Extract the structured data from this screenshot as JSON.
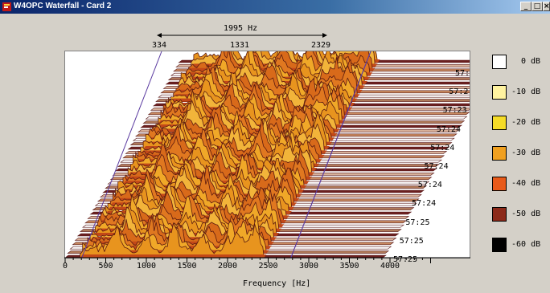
{
  "window": {
    "title": "W4OPC Waterfall  - Card 2",
    "buttons": {
      "minimize": "_",
      "maximize": "□",
      "close": "×"
    }
  },
  "bandwidth": {
    "label": "1995 Hz",
    "low": "334",
    "center": "1331",
    "high": "2329"
  },
  "timestamps": [
    "57:",
    "57:2",
    "57:23",
    "57:24",
    "57:24",
    "57:24",
    "57:24",
    "57:24",
    "57:25",
    "57:25",
    "57:25"
  ],
  "legend": [
    {
      "label": "0 dB",
      "color": "#ffffff"
    },
    {
      "label": "-10 dB",
      "color": "#fff3a0"
    },
    {
      "label": "-20 dB",
      "color": "#f5dc28"
    },
    {
      "label": "-30 dB",
      "color": "#f0a020"
    },
    {
      "label": "-40 dB",
      "color": "#e85a1a"
    },
    {
      "label": "-50 dB",
      "color": "#8c2a1a"
    },
    {
      "label": "-60 dB",
      "color": "#000000"
    }
  ],
  "chart_data": {
    "type": "area",
    "xlabel": "Frequency [Hz]",
    "xticks": [
      "0",
      "500",
      "1000",
      "1500",
      "2000",
      "2500",
      "3000",
      "3500",
      "4000"
    ],
    "xlim": [
      0,
      4000
    ],
    "passband": [
      334,
      2329
    ],
    "peak_frequencies": [
      650,
      1000,
      1331,
      1700,
      2000,
      2150,
      2329
    ]
  }
}
